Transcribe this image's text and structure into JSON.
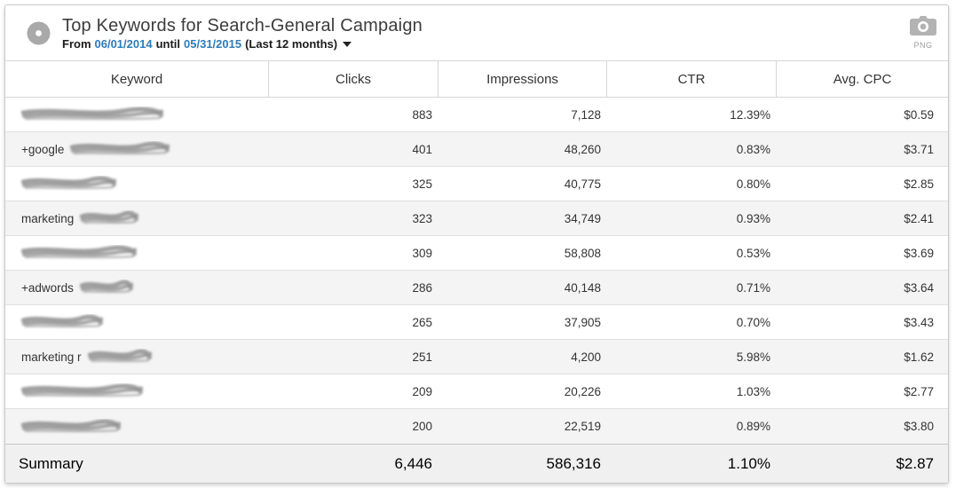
{
  "widget": {
    "title": "Top Keywords for Search-General Campaign",
    "subtitle": {
      "from_label": "From",
      "start_date": "06/01/2014",
      "until_label": "until",
      "end_date": "05/31/2015",
      "range_label": "(Last 12 months)"
    },
    "export": {
      "label": "PNG"
    }
  },
  "icons": {
    "gear": "gear-icon",
    "camera": "camera-icon",
    "caret": "caret-down-icon",
    "scribble": "redacted-keyword-scribble"
  },
  "colors": {
    "link_blue": "#2e7cb7",
    "icon_gray": "#a9a9a9",
    "scribble_gray": "#8f8f8f",
    "row_alt_bg": "#f4f4f4",
    "summary_bg": "#f0f0f0",
    "border": "#d6d6d6"
  },
  "table": {
    "columns": [
      "Keyword",
      "Clicks",
      "Impressions",
      "CTR",
      "Avg. CPC"
    ],
    "rows": [
      {
        "keyword_prefix": "",
        "redacted": true,
        "redaction_width": 160,
        "clicks": "883",
        "impressions": "7,128",
        "ctr": "12.39%",
        "avg_cpc": "$0.59"
      },
      {
        "keyword_prefix": "+google",
        "redacted": true,
        "redaction_width": 112,
        "clicks": "401",
        "impressions": "48,260",
        "ctr": "0.83%",
        "avg_cpc": "$3.71"
      },
      {
        "keyword_prefix": "",
        "redacted": true,
        "redaction_width": 107,
        "clicks": "325",
        "impressions": "40,775",
        "ctr": "0.80%",
        "avg_cpc": "$2.85"
      },
      {
        "keyword_prefix": "marketing",
        "redacted": true,
        "redaction_width": 66,
        "clicks": "323",
        "impressions": "34,749",
        "ctr": "0.93%",
        "avg_cpc": "$2.41"
      },
      {
        "keyword_prefix": "",
        "redacted": true,
        "redaction_width": 130,
        "clicks": "309",
        "impressions": "58,808",
        "ctr": "0.53%",
        "avg_cpc": "$3.69"
      },
      {
        "keyword_prefix": "+adwords",
        "redacted": true,
        "redaction_width": 60,
        "clicks": "286",
        "impressions": "40,148",
        "ctr": "0.71%",
        "avg_cpc": "$3.64"
      },
      {
        "keyword_prefix": "",
        "redacted": true,
        "redaction_width": 92,
        "clicks": "265",
        "impressions": "37,905",
        "ctr": "0.70%",
        "avg_cpc": "$3.43"
      },
      {
        "keyword_prefix": "marketing r",
        "redacted": true,
        "redaction_width": 72,
        "clicks": "251",
        "impressions": "4,200",
        "ctr": "5.98%",
        "avg_cpc": "$1.62"
      },
      {
        "keyword_prefix": "",
        "redacted": true,
        "redaction_width": 137,
        "clicks": "209",
        "impressions": "20,226",
        "ctr": "1.03%",
        "avg_cpc": "$2.77"
      },
      {
        "keyword_prefix": "",
        "redacted": true,
        "redaction_width": 112,
        "clicks": "200",
        "impressions": "22,519",
        "ctr": "0.89%",
        "avg_cpc": "$3.80"
      }
    ],
    "summary": {
      "label": "Summary",
      "clicks": "6,446",
      "impressions": "586,316",
      "ctr": "1.10%",
      "avg_cpc": "$2.87"
    }
  }
}
